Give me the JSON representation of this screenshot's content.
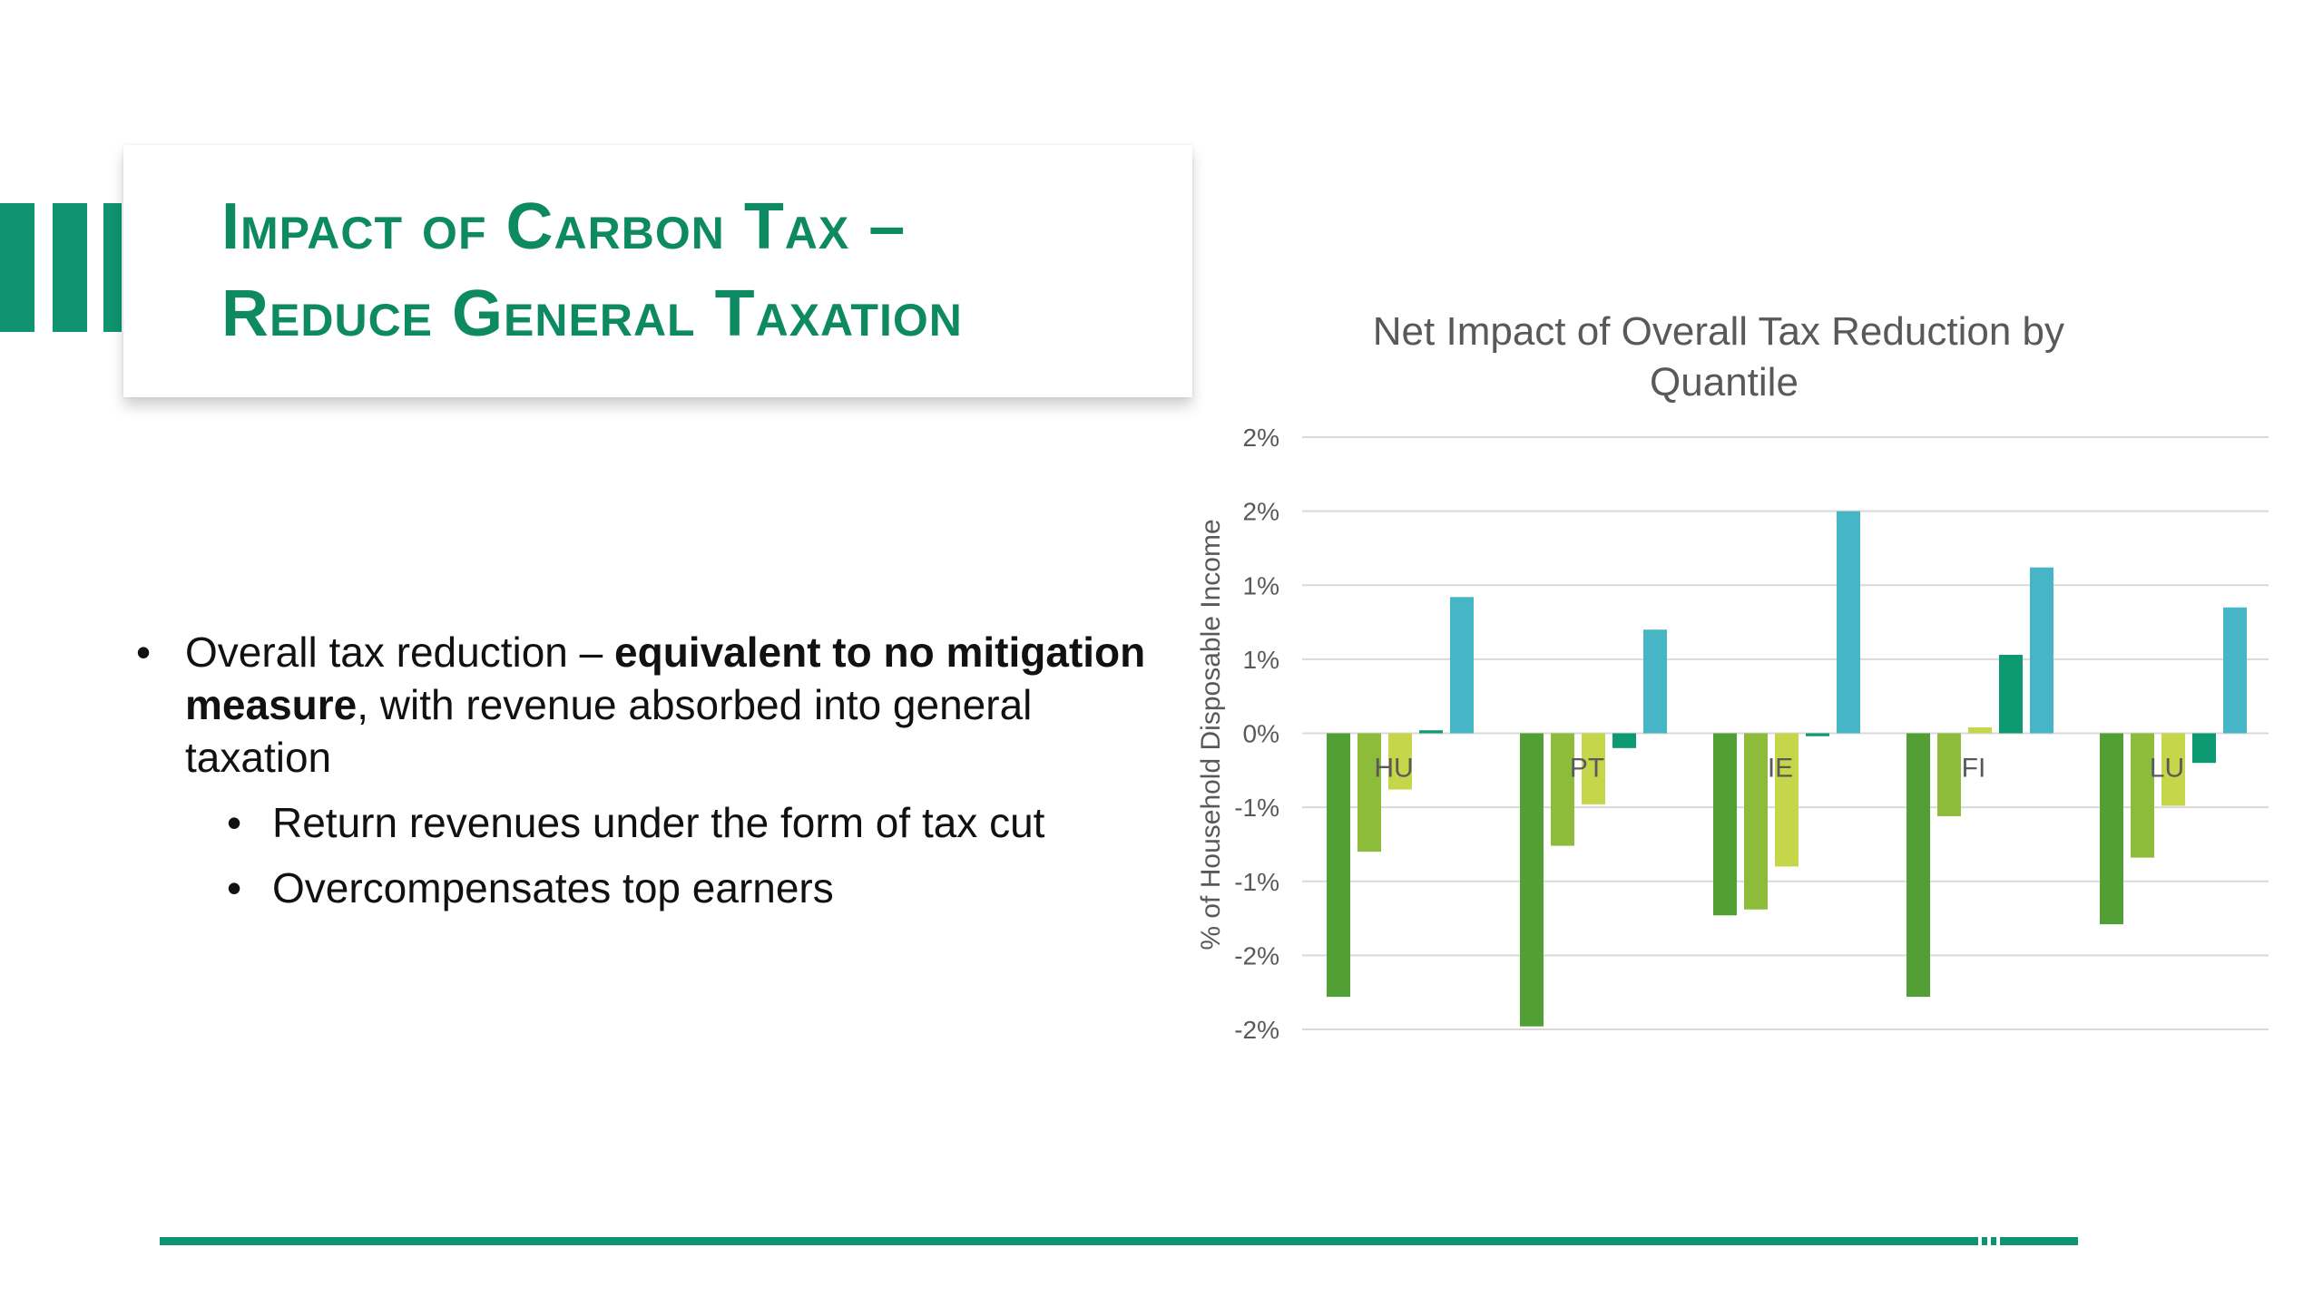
{
  "slide": {
    "title_line1": "Impact of Carbon Tax –",
    "title_line2": "Reduce General Taxation",
    "bullet_main_pre": "Overall tax reduction – ",
    "bullet_main_bold": "equivalent to no mitigation measure",
    "bullet_main_post": ", with revenue absorbed into general taxation",
    "sub_bullets": [
      "Return revenues under the form of tax cut",
      "Overcompensates top earners"
    ],
    "accent_color": "#0e9470",
    "title_color": "#0e8a63"
  },
  "chart_data": {
    "type": "bar",
    "title": "Net Impact of Overall Tax Reduction by Quantile",
    "ylabel": "% of Household Disposable Income",
    "ylim": [
      -2.0,
      2.0
    ],
    "ytick_values": [
      2.0,
      1.5,
      1.0,
      0.5,
      0.0,
      -0.5,
      -1.0,
      -1.5,
      -2.0
    ],
    "ytick_labels": [
      "2%",
      "2%",
      "1%",
      "1%",
      "0%",
      "-1%",
      "-1%",
      "-2%",
      "-2%"
    ],
    "categories": [
      "HU",
      "PT",
      "IE",
      "FI",
      "LU"
    ],
    "grid": true,
    "legend": "none",
    "series_colors": [
      "#52a035",
      "#8cbc3a",
      "#c5d64a",
      "#0d9a73",
      "#46b6c6"
    ],
    "series": [
      {
        "values": [
          -1.78,
          -1.98,
          -1.23,
          -1.78,
          -1.29
        ]
      },
      {
        "values": [
          -0.8,
          -0.76,
          -1.19,
          -0.56,
          -0.84
        ]
      },
      {
        "values": [
          -0.38,
          -0.48,
          -0.9,
          0.04,
          -0.49
        ]
      },
      {
        "values": [
          0.02,
          -0.1,
          -0.02,
          0.53,
          -0.2
        ]
      },
      {
        "values": [
          0.92,
          0.7,
          1.5,
          1.12,
          0.85
        ]
      }
    ]
  }
}
